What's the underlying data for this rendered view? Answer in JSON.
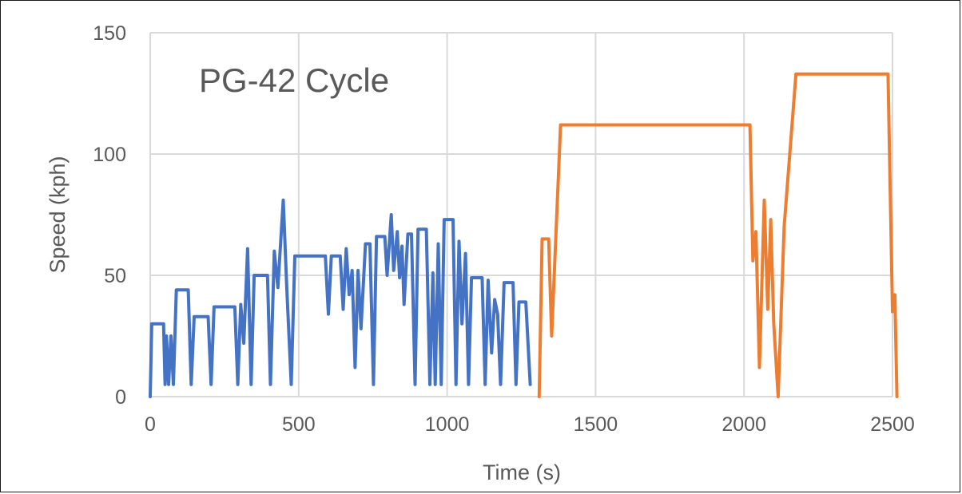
{
  "chart_data": {
    "type": "line",
    "title": "PG-42 Cycle",
    "xlabel": "Time (s)",
    "ylabel": "Speed (kph)",
    "xlim": [
      0,
      2500
    ],
    "ylim": [
      0,
      150
    ],
    "x_ticks": [
      "0",
      "500",
      "1000",
      "1500",
      "2000",
      "2500"
    ],
    "y_ticks": [
      "0",
      "50",
      "100",
      "150"
    ],
    "grid": true,
    "legend": "none",
    "series": [
      {
        "color": "#4472c4",
        "points": [
          [
            0,
            0
          ],
          [
            5,
            30
          ],
          [
            45,
            30
          ],
          [
            50,
            5
          ],
          [
            55,
            25
          ],
          [
            62,
            5
          ],
          [
            70,
            25
          ],
          [
            78,
            5
          ],
          [
            88,
            44
          ],
          [
            128,
            44
          ],
          [
            138,
            5
          ],
          [
            148,
            33
          ],
          [
            195,
            33
          ],
          [
            205,
            5
          ],
          [
            215,
            37
          ],
          [
            285,
            37
          ],
          [
            295,
            5
          ],
          [
            305,
            38
          ],
          [
            315,
            22
          ],
          [
            328,
            61
          ],
          [
            340,
            5
          ],
          [
            350,
            50
          ],
          [
            395,
            50
          ],
          [
            405,
            5
          ],
          [
            418,
            60
          ],
          [
            430,
            45
          ],
          [
            448,
            81
          ],
          [
            460,
            45
          ],
          [
            475,
            5
          ],
          [
            487,
            58
          ],
          [
            590,
            58
          ],
          [
            600,
            34
          ],
          [
            610,
            58
          ],
          [
            640,
            58
          ],
          [
            650,
            36
          ],
          [
            660,
            61
          ],
          [
            670,
            42
          ],
          [
            680,
            52
          ],
          [
            690,
            12
          ],
          [
            700,
            52
          ],
          [
            710,
            28
          ],
          [
            725,
            63
          ],
          [
            740,
            63
          ],
          [
            752,
            5
          ],
          [
            762,
            66
          ],
          [
            790,
            66
          ],
          [
            798,
            50
          ],
          [
            812,
            75
          ],
          [
            820,
            52
          ],
          [
            832,
            68
          ],
          [
            840,
            49
          ],
          [
            848,
            62
          ],
          [
            855,
            38
          ],
          [
            868,
            67
          ],
          [
            880,
            67
          ],
          [
            892,
            5
          ],
          [
            902,
            69
          ],
          [
            930,
            69
          ],
          [
            942,
            5
          ],
          [
            952,
            51
          ],
          [
            960,
            5
          ],
          [
            970,
            63
          ],
          [
            980,
            5
          ],
          [
            990,
            73
          ],
          [
            1020,
            73
          ],
          [
            1030,
            5
          ],
          [
            1040,
            64
          ],
          [
            1050,
            30
          ],
          [
            1062,
            59
          ],
          [
            1072,
            5
          ],
          [
            1082,
            49
          ],
          [
            1118,
            49
          ],
          [
            1128,
            5
          ],
          [
            1138,
            48
          ],
          [
            1150,
            18
          ],
          [
            1160,
            40
          ],
          [
            1170,
            34
          ],
          [
            1180,
            5
          ],
          [
            1192,
            47
          ],
          [
            1222,
            47
          ],
          [
            1232,
            5
          ],
          [
            1242,
            39
          ],
          [
            1265,
            39
          ],
          [
            1280,
            5
          ]
        ]
      },
      {
        "color": "#ed7d31",
        "points": [
          [
            1310,
            0
          ],
          [
            1320,
            65
          ],
          [
            1342,
            65
          ],
          [
            1352,
            25
          ],
          [
            1382,
            112
          ],
          [
            2020,
            112
          ],
          [
            2030,
            56
          ],
          [
            2040,
            68
          ],
          [
            2052,
            12
          ],
          [
            2068,
            81
          ],
          [
            2080,
            36
          ],
          [
            2090,
            73
          ],
          [
            2100,
            30
          ],
          [
            2115,
            0
          ],
          [
            2135,
            70
          ],
          [
            2175,
            133
          ],
          [
            2485,
            133
          ],
          [
            2500,
            35
          ],
          [
            2508,
            42
          ],
          [
            2515,
            0
          ]
        ]
      }
    ]
  }
}
